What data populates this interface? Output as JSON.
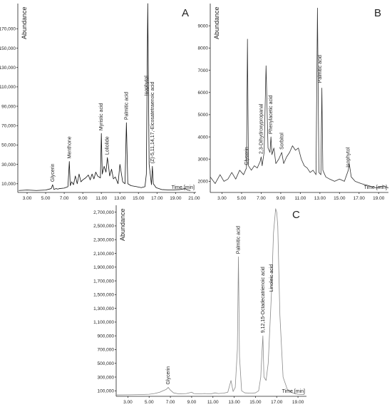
{
  "chart_data": [
    {
      "type": "line",
      "title": "A",
      "y_label": "Abundance",
      "x_label": "Time [min]",
      "xlim": [
        2,
        21.2
      ],
      "ylim": [
        1000,
        196000
      ],
      "xticks": [
        {
          "value": 3,
          "label": "3.00"
        },
        {
          "value": 5,
          "label": "5.00"
        },
        {
          "value": 7,
          "label": "7.00"
        },
        {
          "value": 9,
          "label": "9.00"
        },
        {
          "value": 11,
          "label": "11.00"
        },
        {
          "value": 13,
          "label": "13.00"
        },
        {
          "value": 15,
          "label": "15.00"
        },
        {
          "value": 17,
          "label": "17.00"
        },
        {
          "value": 19,
          "label": "19.00"
        },
        {
          "value": 21,
          "label": "21.00"
        }
      ],
      "yticks": [
        {
          "value": 10000,
          "label": "10,000"
        },
        {
          "value": 30000,
          "label": "30,000"
        },
        {
          "value": 50000,
          "label": "50,000"
        },
        {
          "value": 70000,
          "label": "70,000"
        },
        {
          "value": 90000,
          "label": "90,000"
        },
        {
          "value": 110000,
          "label": "110,000"
        },
        {
          "value": 130000,
          "label": "130,000"
        },
        {
          "value": 150000,
          "label": "150,000"
        },
        {
          "value": 170000,
          "label": "170,000"
        }
      ],
      "x": [
        2.1,
        3,
        4,
        5,
        5.6,
        5.75,
        5.9,
        6.1,
        6.3,
        6.5,
        7.0,
        7.4,
        7.55,
        7.65,
        7.8,
        8.0,
        8.2,
        8.4,
        8.6,
        8.8,
        9.0,
        9.3,
        9.6,
        9.8,
        10.0,
        10.2,
        10.4,
        10.6,
        10.9,
        11.0,
        11.1,
        11.3,
        11.5,
        11.65,
        11.75,
        11.9,
        12.1,
        12.3,
        12.5,
        12.8,
        13.0,
        13.3,
        13.55,
        13.7,
        13.85,
        14.2,
        14.8,
        15.3,
        15.7,
        15.85,
        16.0,
        16.15,
        16.4,
        16.5,
        16.6,
        16.9,
        17.5,
        18.5,
        19.5,
        20.0,
        20.3,
        20.6
      ],
      "series": [
        {
          "color": "#111111",
          "values": [
            3000,
            3500,
            3000,
            3500,
            5000,
            9000,
            4000,
            5000,
            4500,
            5000,
            5500,
            7000,
            33000,
            8000,
            12000,
            9000,
            18000,
            10000,
            20000,
            12000,
            14000,
            16000,
            19000,
            14000,
            20000,
            15000,
            22000,
            18000,
            16000,
            62000,
            20000,
            28000,
            22000,
            37000,
            30000,
            18000,
            25000,
            15000,
            17000,
            10000,
            30000,
            12000,
            10000,
            73000,
            10000,
            8000,
            7000,
            6000,
            7000,
            20000,
            196000,
            30000,
            9000,
            28000,
            10000,
            6000,
            4000,
            3500,
            4000,
            5000,
            3500,
            3000
          ]
        }
      ],
      "annotations": [
        {
          "text": "Glycerin",
          "x": 5.75,
          "y": 9000
        },
        {
          "text": "Menthone",
          "x": 7.55,
          "y": 33000
        },
        {
          "text": "Myristic acid",
          "x": 11.0,
          "y": 62000
        },
        {
          "text": "Loliolide",
          "x": 11.65,
          "y": 37000
        },
        {
          "text": "Palmitic acid",
          "x": 13.7,
          "y": 73000
        },
        {
          "text": "Isophytol",
          "x": 15.85,
          "y": 98000
        },
        {
          "text": "(Z)-5,11,14,17,-Eicosatetraenoic acid",
          "x": 16.5,
          "y": 28000
        }
      ]
    },
    {
      "type": "line",
      "title": "B",
      "y_label": "Abundance",
      "x_label": "Time [min]",
      "xlim": [
        1.8,
        20
      ],
      "ylim": [
        1500,
        10000
      ],
      "xticks": [
        {
          "value": 3,
          "label": "3.00"
        },
        {
          "value": 5,
          "label": "5.00"
        },
        {
          "value": 7,
          "label": "7.00"
        },
        {
          "value": 9,
          "label": "9.00"
        },
        {
          "value": 11,
          "label": "11.00"
        },
        {
          "value": 13,
          "label": "13.00"
        },
        {
          "value": 15,
          "label": "15.00"
        },
        {
          "value": 17,
          "label": "17.00"
        },
        {
          "value": 19,
          "label": "19.00"
        }
      ],
      "yticks": [
        2000,
        3000,
        4000,
        5000,
        6000,
        7000,
        8000,
        9000
      ],
      "x": [
        1.8,
        2.3,
        2.8,
        3.2,
        3.6,
        4.0,
        4.4,
        4.8,
        5.2,
        5.5,
        5.6,
        5.7,
        6.0,
        6.3,
        6.6,
        6.9,
        7.0,
        7.1,
        7.3,
        7.5,
        7.7,
        7.9,
        8.0,
        8.1,
        8.3,
        8.5,
        8.8,
        9.1,
        9.3,
        9.6,
        9.9,
        10.2,
        10.5,
        10.8,
        11.1,
        11.4,
        11.7,
        12.0,
        12.3,
        12.6,
        12.75,
        12.9,
        13.1,
        13.2,
        13.3,
        13.6,
        14.0,
        14.5,
        15.0,
        15.5,
        15.9,
        16.0,
        16.2,
        16.6,
        17.2,
        18.0,
        18.8,
        19.5,
        20.0
      ],
      "series": [
        {
          "color": "#333333",
          "values": [
            2200,
            1900,
            2300,
            2000,
            2100,
            2400,
            2100,
            2500,
            2300,
            2600,
            8400,
            2700,
            2500,
            2700,
            2600,
            2900,
            3100,
            2700,
            3300,
            7200,
            3500,
            3300,
            4000,
            3200,
            3500,
            2800,
            3000,
            3300,
            2800,
            3100,
            3300,
            3600,
            3400,
            3500,
            3000,
            2700,
            2600,
            2400,
            2500,
            2300,
            9800,
            2400,
            2300,
            6200,
            2500,
            2200,
            2100,
            2000,
            2100,
            2000,
            2500,
            2800,
            2200,
            2000,
            1900,
            1800,
            1700,
            1800,
            1700
          ]
        }
      ],
      "annotations": [
        {
          "text": "Glycerin",
          "x": 5.5,
          "y": 2600
        },
        {
          "text": "2,3-Dihydroxypropanal",
          "x": 7.0,
          "y": 3100
        },
        {
          "text": "Phenylacetic acid",
          "x": 8.0,
          "y": 4000
        },
        {
          "text": "Sorbitol",
          "x": 9.1,
          "y": 3300
        },
        {
          "text": "Palmitic acid",
          "x": 13.0,
          "y": 6300
        },
        {
          "text": "Isophytol",
          "x": 15.9,
          "y": 2500
        }
      ]
    },
    {
      "type": "line",
      "title": "C",
      "y_label": "Abundance",
      "x_label": "Time [min]",
      "xlim": [
        1.9,
        19.8
      ],
      "ylim": [
        20000,
        2800000
      ],
      "xticks": [
        {
          "value": 3,
          "label": "3.00"
        },
        {
          "value": 5,
          "label": "5.00"
        },
        {
          "value": 7,
          "label": "7.00"
        },
        {
          "value": 9,
          "label": "9.00"
        },
        {
          "value": 11,
          "label": "11.00"
        },
        {
          "value": 13,
          "label": "13.00"
        },
        {
          "value": 15,
          "label": "15.00"
        },
        {
          "value": 17,
          "label": "17.00"
        },
        {
          "value": 19,
          "label": "19.00"
        }
      ],
      "yticks": [
        {
          "value": 100000,
          "label": "100,000"
        },
        {
          "value": 300000,
          "label": "300,000"
        },
        {
          "value": 500000,
          "label": "500,000"
        },
        {
          "value": 700000,
          "label": "700,000"
        },
        {
          "value": 900000,
          "label": "900,000"
        },
        {
          "value": 1100000,
          "label": "1,100,000"
        },
        {
          "value": 1300000,
          "label": "1,300,000"
        },
        {
          "value": 1500000,
          "label": "1,500,000"
        },
        {
          "value": 1700000,
          "label": "1,700,000"
        },
        {
          "value": 1900000,
          "label": "1,900,000"
        },
        {
          "value": 2100000,
          "label": "2,100,000"
        },
        {
          "value": 2300000,
          "label": "2,300,000"
        },
        {
          "value": 2500000,
          "label": "2,500,000"
        },
        {
          "value": 2700000,
          "label": "2,700,000"
        }
      ],
      "x": [
        1.9,
        3,
        4,
        5,
        5.5,
        6.0,
        6.3,
        6.6,
        6.8,
        7.0,
        7.3,
        7.8,
        8.5,
        9.0,
        9.2,
        9.6,
        10.2,
        10.8,
        11.2,
        11.5,
        12.0,
        12.4,
        12.7,
        12.9,
        13.1,
        13.3,
        13.4,
        13.5,
        13.7,
        14.0,
        14.6,
        15.0,
        15.3,
        15.5,
        15.6,
        15.7,
        15.8,
        16.0,
        16.2,
        16.5,
        16.7,
        16.9,
        17.0,
        17.1,
        17.3,
        17.6,
        18.0,
        18.5,
        19.0,
        19.6
      ],
      "series": [
        {
          "color": "#8a8a8a",
          "values": [
            40000,
            42000,
            45000,
            50000,
            60000,
            80000,
            100000,
            120000,
            150000,
            110000,
            70000,
            55000,
            60000,
            80000,
            60000,
            55000,
            60000,
            55000,
            70000,
            60000,
            65000,
            80000,
            250000,
            90000,
            150000,
            700000,
            2050000,
            600000,
            100000,
            70000,
            65000,
            70000,
            100000,
            300000,
            620000,
            900000,
            300000,
            250000,
            500000,
            1500000,
            2400000,
            2750000,
            2700000,
            2500000,
            1200000,
            300000,
            120000,
            70000,
            50000,
            45000
          ]
        }
      ],
      "annotations": [
        {
          "text": "Glycerin",
          "x": 6.8,
          "y": 150000
        },
        {
          "text": "Palmitic acid",
          "x": 13.4,
          "y": 2050000
        },
        {
          "text": "9,12,15-Octadecatrienoic acid",
          "x": 15.7,
          "y": 900000
        },
        {
          "text": "Linoleic acid",
          "x": 16.5,
          "y": 1500000
        }
      ]
    }
  ]
}
